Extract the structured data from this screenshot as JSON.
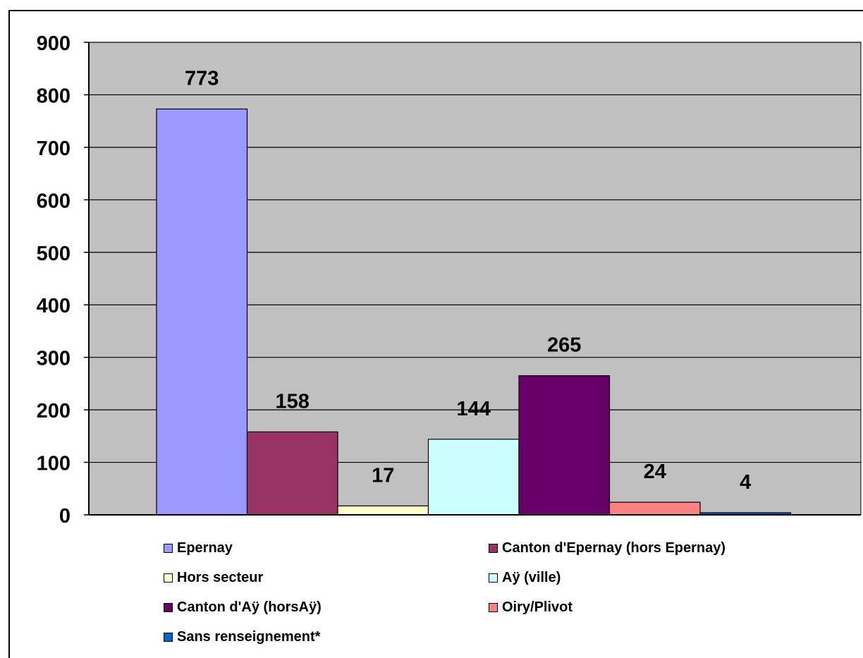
{
  "chart_data": {
    "type": "bar",
    "ylim": [
      0,
      900
    ],
    "yticks": [
      "0",
      "100",
      "200",
      "300",
      "400",
      "500",
      "600",
      "700",
      "800",
      "900"
    ],
    "plot_background": "#c0c0c0",
    "grid": true,
    "legend_position": "bottom",
    "series": [
      {
        "name": "Epernay",
        "value": 773,
        "color": "#9999ff"
      },
      {
        "name": "Canton d'Epernay (hors Epernay)",
        "value": 158,
        "color": "#993366"
      },
      {
        "name": "Hors secteur",
        "value": 17,
        "color": "#ffffcc"
      },
      {
        "name": "Aÿ (ville)",
        "value": 144,
        "color": "#ccffff"
      },
      {
        "name": "Canton d'Aÿ (horsAÿ)",
        "value": 265,
        "color": "#660066"
      },
      {
        "name": "Oiry/Plivot",
        "value": 24,
        "color": "#ff8080"
      },
      {
        "name": "Sans renseignement*",
        "value": 4,
        "color": "#0066cc"
      }
    ],
    "data_labels": [
      "773",
      "158",
      "17",
      "144",
      "265",
      "24",
      "4"
    ]
  }
}
